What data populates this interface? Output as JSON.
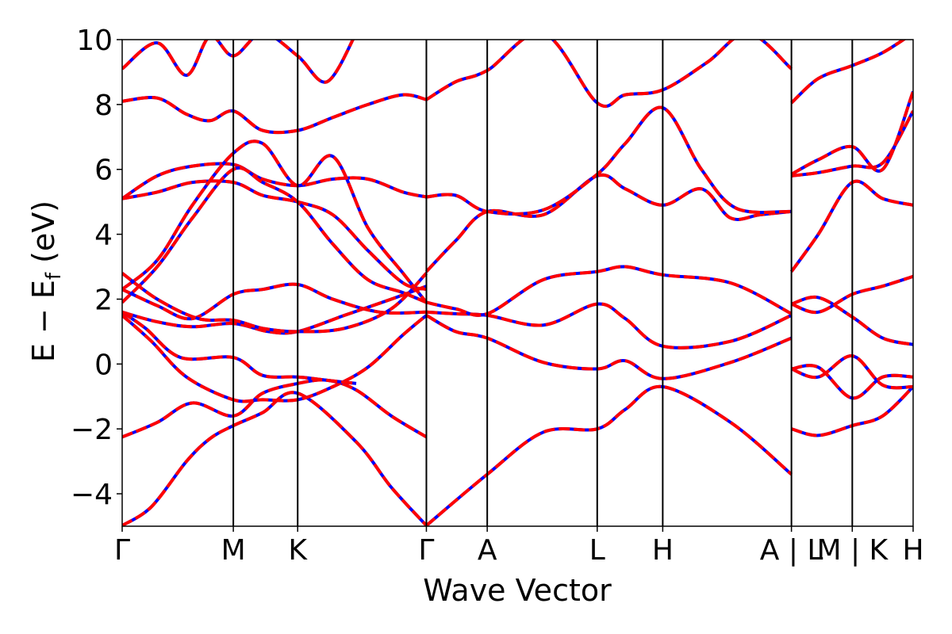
{
  "chart_data": {
    "type": "line",
    "title": "",
    "xlabel": "Wave Vector",
    "ylabel": "E − E",
    "ylabel_subscript": "f",
    "ylabel_unit": " (eV)",
    "ylim": [
      -5,
      10
    ],
    "y_ticks": [
      10,
      8,
      6,
      4,
      2,
      0,
      -2,
      -4
    ],
    "y_tick_labels": [
      "10",
      "8",
      "6",
      "4",
      "2",
      "0",
      "−2",
      "−4"
    ],
    "x_ticks": [
      0,
      0.95,
      1.5,
      2.6,
      3.12,
      4.06,
      4.62,
      5.72,
      6.24,
      6.76
    ],
    "x_tick_labels": [
      "Γ",
      "M",
      "K",
      "Γ",
      "A",
      "L",
      "H",
      "A | L",
      "M | K",
      "H"
    ],
    "xlim": [
      0,
      6.76
    ],
    "grid": false,
    "colors": {
      "series_a": "#0000ff",
      "series_b": "#ff0000",
      "vline": "#000000"
    },
    "series": [
      {
        "x": [
          0,
          0.25,
          0.55,
          0.75,
          0.95,
          1.2,
          1.5,
          2.0,
          2.3,
          2.6
        ],
        "y": [
          -4.98,
          -4.4,
          -3.0,
          -2.3,
          -1.9,
          -1.5,
          -0.9,
          -2.4,
          -3.8,
          -4.98
        ]
      },
      {
        "x": [
          2.6,
          3.12,
          3.6,
          4.06,
          4.3,
          4.62,
          5.2,
          5.72
        ],
        "y": [
          -4.98,
          -3.4,
          -2.1,
          -2.0,
          -1.4,
          -0.7,
          -1.8,
          -3.4
        ]
      },
      {
        "x": [
          0,
          0.3,
          0.6,
          0.95,
          1.2,
          1.5,
          1.75,
          2.0,
          2.3,
          2.6
        ],
        "y": [
          -2.25,
          -1.8,
          -1.2,
          -1.6,
          -0.9,
          -0.6,
          -0.5,
          -0.8,
          -1.6,
          -2.25
        ]
      },
      {
        "x": [
          0,
          0.25,
          0.55,
          0.95,
          1.2,
          1.5,
          1.8,
          2.1,
          2.4,
          2.6
        ],
        "y": [
          1.5,
          0.7,
          -0.4,
          -1.1,
          -1.1,
          -1.1,
          -0.7,
          -0.1,
          0.9,
          1.5
        ]
      },
      {
        "x": [
          0,
          0.2,
          0.5,
          0.95,
          1.2,
          1.5,
          1.75,
          2.0
        ],
        "y": [
          1.6,
          1.1,
          0.2,
          0.2,
          -0.35,
          -0.4,
          -0.5,
          -0.6
        ]
      },
      {
        "x": [
          0,
          0.3,
          0.6,
          0.95,
          1.25,
          1.5,
          1.9,
          2.3,
          2.6
        ],
        "y": [
          1.6,
          1.3,
          1.15,
          1.25,
          1.0,
          1.0,
          1.5,
          2.0,
          2.4
        ]
      },
      {
        "x": [
          0,
          0.3,
          0.6,
          0.95,
          1.2,
          1.5,
          1.8,
          2.2,
          2.6
        ],
        "y": [
          2.3,
          1.8,
          1.4,
          2.15,
          2.3,
          2.45,
          2.0,
          1.6,
          1.6
        ]
      },
      {
        "x": [
          0,
          0.3,
          0.65,
          0.95,
          1.2,
          1.5,
          1.9,
          2.3,
          2.6
        ],
        "y": [
          2.8,
          2.0,
          1.4,
          1.35,
          1.1,
          1.0,
          1.1,
          1.7,
          2.8
        ]
      },
      {
        "x": [
          2.6,
          2.85,
          3.12,
          3.6,
          4.06,
          4.3,
          4.62,
          5.2,
          5.72
        ],
        "y": [
          1.5,
          1.0,
          0.8,
          0.05,
          -0.15,
          0.1,
          -0.45,
          0.05,
          0.8
        ]
      },
      {
        "x": [
          2.6,
          2.85,
          3.12,
          3.6,
          4.06,
          4.3,
          4.62,
          5.2,
          5.72
        ],
        "y": [
          1.6,
          1.55,
          1.5,
          1.2,
          1.85,
          1.4,
          0.55,
          0.7,
          1.5
        ]
      },
      {
        "x": [
          2.6,
          2.85,
          3.12,
          3.6,
          4.06,
          4.3,
          4.62,
          5.2,
          5.72
        ],
        "y": [
          1.9,
          1.7,
          1.55,
          2.6,
          2.85,
          3.0,
          2.75,
          2.5,
          1.55
        ]
      },
      {
        "x": [
          2.6,
          2.85,
          3.12,
          3.6,
          4.06,
          4.3,
          4.62,
          4.95,
          5.2,
          5.45,
          5.72
        ],
        "y": [
          2.85,
          3.8,
          4.7,
          4.6,
          5.8,
          5.4,
          4.9,
          5.4,
          4.5,
          4.6,
          4.7
        ]
      },
      {
        "x": [
          2.6,
          2.85,
          3.12,
          3.6,
          4.06,
          4.3,
          4.62,
          4.95,
          5.25,
          5.72
        ],
        "y": [
          5.15,
          5.2,
          4.7,
          4.75,
          5.85,
          6.8,
          7.9,
          6.0,
          4.8,
          4.7
        ]
      },
      {
        "x": [
          2.6,
          2.85,
          3.12,
          3.6,
          4.06,
          4.3,
          4.62,
          5.0,
          5.35,
          5.72
        ],
        "y": [
          8.15,
          8.7,
          9.05,
          10.2,
          8.05,
          8.3,
          8.45,
          9.3,
          10.2,
          9.1
        ]
      },
      {
        "x": [
          0,
          0.3,
          0.6,
          0.95,
          1.2,
          1.5,
          1.8,
          2.1,
          2.4,
          2.6
        ],
        "y": [
          5.1,
          5.8,
          6.1,
          6.15,
          5.7,
          5.5,
          5.7,
          5.7,
          5.3,
          5.15
        ]
      },
      {
        "x": [
          0,
          0.3,
          0.6,
          0.95,
          1.2,
          1.5,
          1.8,
          2.1,
          2.4,
          2.6
        ],
        "y": [
          5.1,
          5.3,
          5.6,
          5.6,
          5.2,
          5.0,
          4.6,
          3.5,
          2.5,
          2.3
        ]
      },
      {
        "x": [
          0,
          0.3,
          0.6,
          0.95,
          1.2,
          1.5,
          1.8,
          2.1,
          2.4,
          2.6
        ],
        "y": [
          2.3,
          3.2,
          4.9,
          6.5,
          6.8,
          5.5,
          6.4,
          4.2,
          2.8,
          1.9
        ]
      },
      {
        "x": [
          0,
          0.3,
          0.6,
          0.95,
          1.2,
          1.5,
          1.8,
          2.1,
          2.4,
          2.6
        ],
        "y": [
          1.9,
          3.0,
          4.5,
          6.0,
          5.6,
          5.0,
          3.7,
          2.6,
          2.2,
          1.9
        ]
      },
      {
        "x": [
          0,
          0.3,
          0.55,
          0.75,
          0.95,
          1.2,
          1.5,
          1.8,
          2.1,
          2.4,
          2.6
        ],
        "y": [
          8.1,
          8.2,
          7.7,
          7.5,
          7.8,
          7.2,
          7.2,
          7.6,
          8.0,
          8.3,
          8.15
        ]
      },
      {
        "x": [
          0,
          0.3,
          0.55,
          0.75,
          0.95,
          1.2,
          1.5,
          1.75,
          2.0
        ],
        "y": [
          9.1,
          9.9,
          8.9,
          10.1,
          9.5,
          10.2,
          9.5,
          8.7,
          10.2
        ]
      },
      {
        "x": [
          5.72,
          5.95,
          6.24,
          6.5,
          6.76
        ],
        "y": [
          -2.0,
          -2.2,
          -1.9,
          -1.6,
          -0.7
        ]
      },
      {
        "x": [
          5.72,
          5.95,
          6.24,
          6.5,
          6.76
        ],
        "y": [
          -0.15,
          -0.4,
          0.25,
          -0.65,
          -0.7
        ]
      },
      {
        "x": [
          5.72,
          5.95,
          6.24,
          6.5,
          6.76
        ],
        "y": [
          -0.15,
          -0.1,
          -1.05,
          -0.4,
          -0.4
        ]
      },
      {
        "x": [
          5.72,
          5.95,
          6.24,
          6.5,
          6.76
        ],
        "y": [
          1.85,
          2.05,
          1.45,
          0.8,
          0.6
        ]
      },
      {
        "x": [
          5.72,
          5.95,
          6.24,
          6.5,
          6.76
        ],
        "y": [
          1.85,
          1.6,
          2.15,
          2.4,
          2.7
        ]
      },
      {
        "x": [
          5.72,
          5.95,
          6.24,
          6.5,
          6.76
        ],
        "y": [
          2.85,
          4.0,
          5.6,
          5.1,
          4.9
        ]
      },
      {
        "x": [
          5.72,
          5.95,
          6.24,
          6.5,
          6.76
        ],
        "y": [
          5.8,
          5.9,
          6.1,
          6.2,
          7.8
        ]
      },
      {
        "x": [
          5.72,
          5.95,
          6.24,
          6.5,
          6.76
        ],
        "y": [
          8.05,
          8.8,
          9.2,
          9.6,
          10.2
        ]
      },
      {
        "x": [
          5.72,
          5.95,
          6.24,
          6.5,
          6.76
        ],
        "y": [
          5.85,
          6.3,
          6.7,
          6.0,
          8.4
        ]
      }
    ]
  }
}
